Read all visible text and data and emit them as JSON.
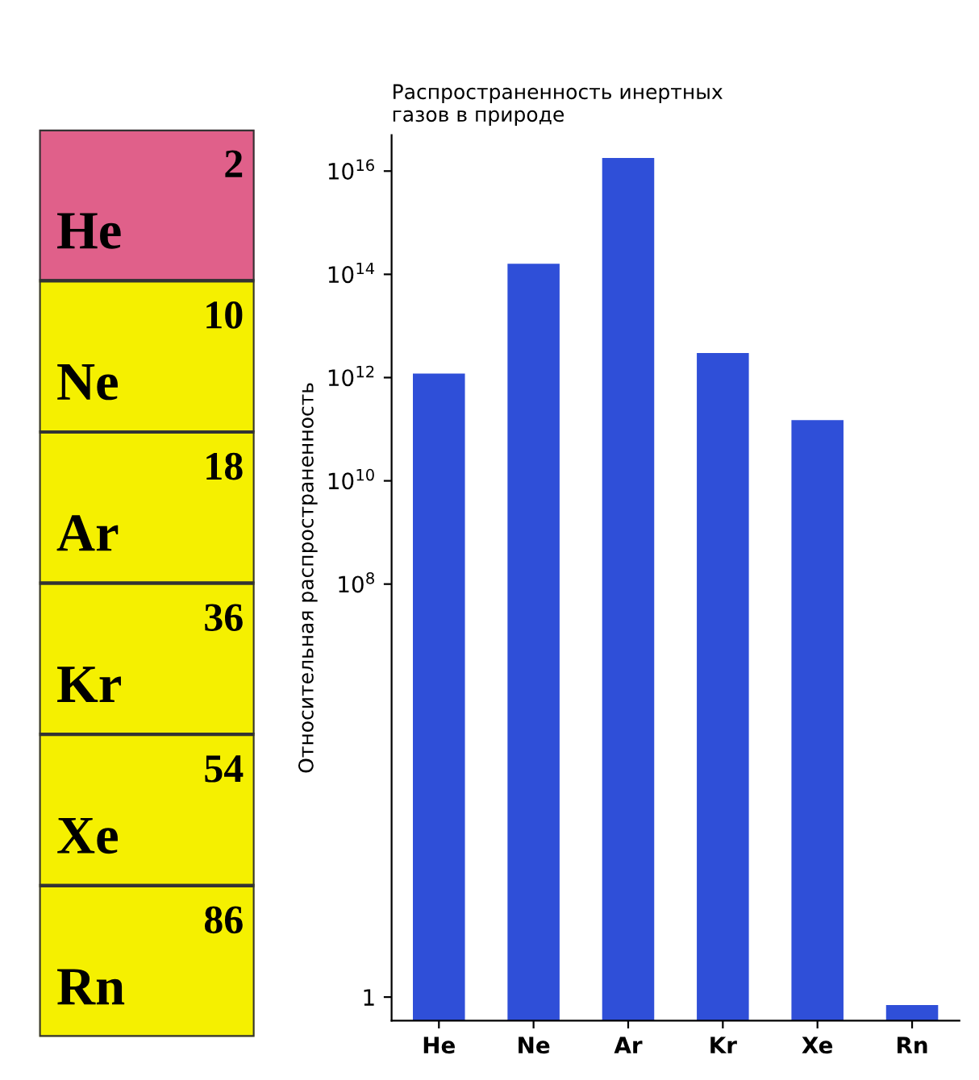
{
  "chart_data": [
    {
      "type": "other",
      "categories": [
        "He",
        "Ne",
        "Ar",
        "Kr",
        "Xe",
        "Rn"
      ],
      "values": [
        2,
        10,
        18,
        36,
        54,
        86
      ],
      "colors": [
        "#e0608a",
        "#f5f000",
        "#f5f000",
        "#f5f000",
        "#f5f000",
        "#f5f000"
      ],
      "data_labels": true
    },
    {
      "type": "bar",
      "title": "Распространенность инертных\nгазов в природе",
      "ylabel": "Относительная распространенность",
      "categories": [
        "He",
        "Ne",
        "Ar",
        "Kr",
        "Xe",
        "Rn"
      ],
      "values": [
        1200000000000.0,
        160000000000000.0,
        1.8e+16,
        3000000000000.0,
        150000000000.0,
        0.7
      ],
      "color": "#2f4fd8",
      "log": true,
      "ylim": [
        0.35,
        5e+16
      ],
      "yticks": [
        1,
        {
          "value": 100000000.0,
          "label": "10$^{8}$"
        },
        {
          "value": 10000000000.0,
          "label": "10$^{10}$"
        },
        {
          "value": 1000000000000.0,
          "label": "10$^{12}$"
        },
        {
          "value": 100000000000000.0,
          "label": "10$^{14}$"
        },
        {
          "value": 1e+16,
          "label": "10$^{16}$"
        }
      ],
      "grid": false
    }
  ]
}
